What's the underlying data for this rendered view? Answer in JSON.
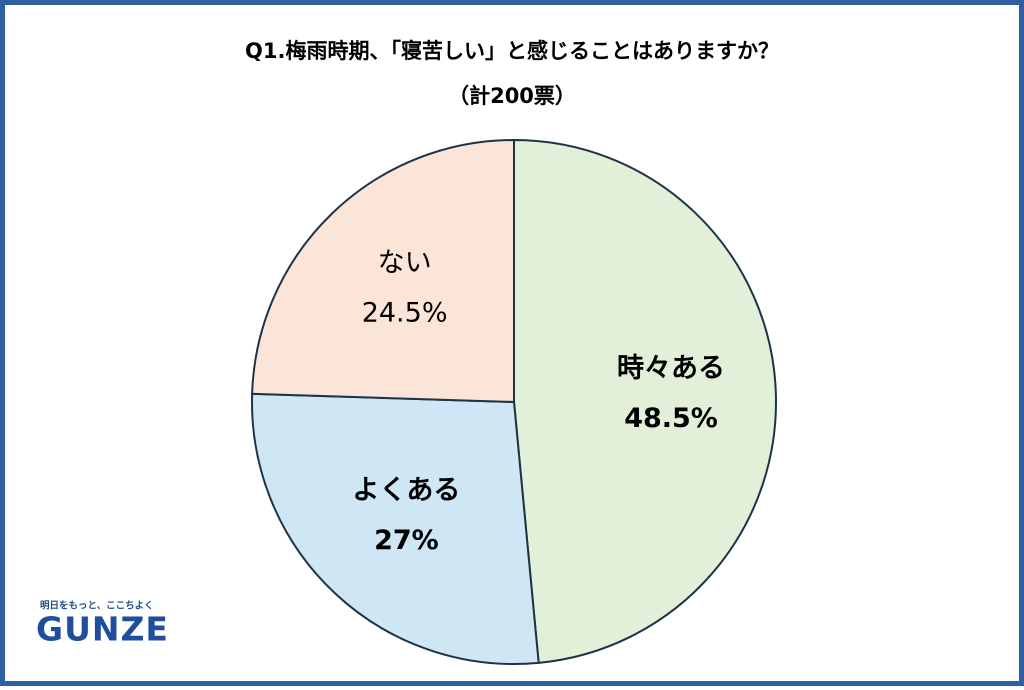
{
  "chart_data": {
    "type": "pie",
    "title": "Q1.梅雨時期、「寝苦しい」と感じることはありますか？",
    "subtitle": "（計200票）",
    "categories": [
      "時々ある",
      "よくある",
      "ない"
    ],
    "values": [
      48.5,
      27,
      24.5
    ],
    "value_labels": [
      "48.5%",
      "27%",
      "24.5%"
    ],
    "colors": [
      "#e2f0d9",
      "#cfe6f5",
      "#fbe4d8"
    ]
  },
  "logo": {
    "tagline": "明日をもっと、ここちよく",
    "name": "GUNZE"
  }
}
